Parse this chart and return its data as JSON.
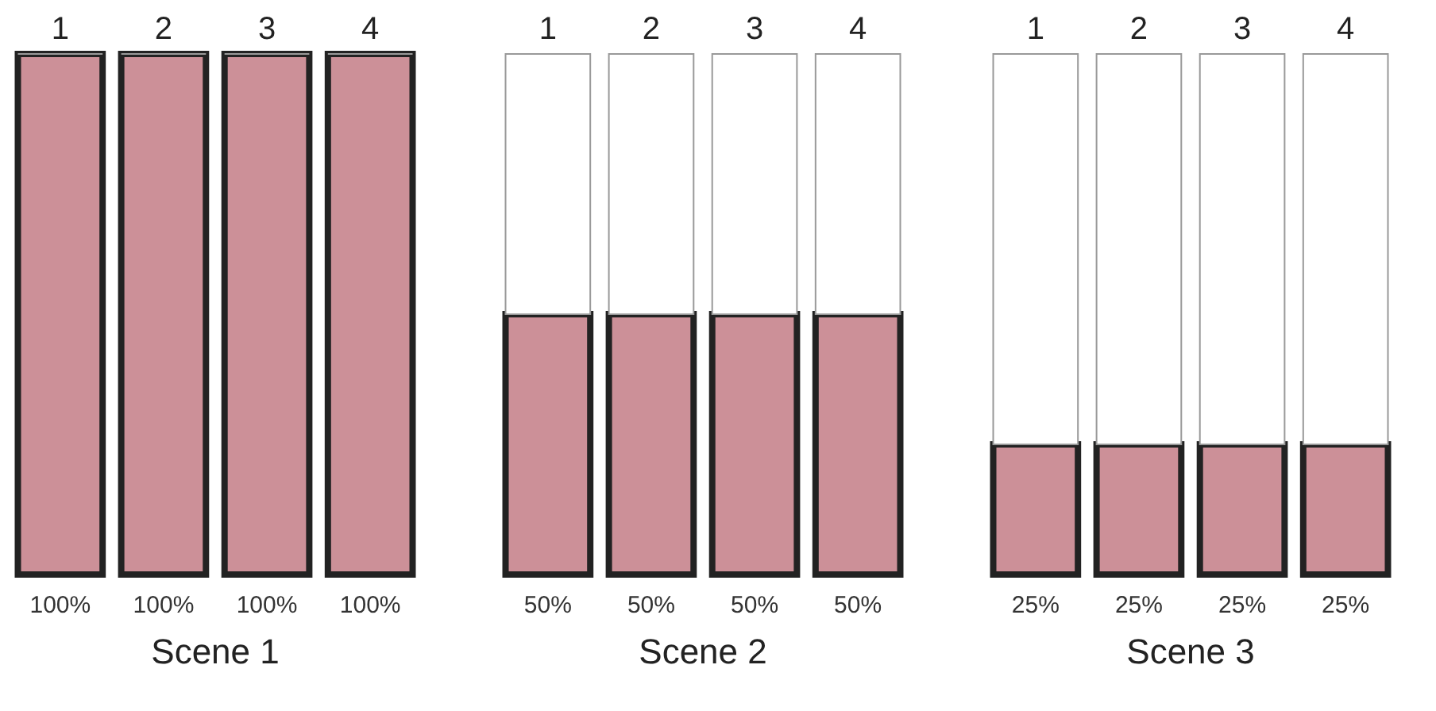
{
  "chart_data": [
    {
      "type": "bar",
      "title": "Scene 1",
      "categories": [
        "1",
        "2",
        "3",
        "4"
      ],
      "stacked": true,
      "ylim": [
        0,
        100
      ],
      "tick_labels": "x",
      "series": [
        {
          "color": "#cc9098",
          "values": [
            100,
            100,
            100,
            100
          ],
          "value_labels": [
            "100%",
            "100%",
            "100%",
            "100%"
          ]
        },
        {
          "color": "#ffffff",
          "values": [
            0,
            0,
            0,
            0
          ]
        }
      ]
    },
    {
      "type": "bar",
      "title": "Scene 2",
      "categories": [
        "1",
        "2",
        "3",
        "4"
      ],
      "stacked": true,
      "ylim": [
        0,
        100
      ],
      "tick_labels": "x",
      "series": [
        {
          "color": "#cc9098",
          "values": [
            50,
            50,
            50,
            50
          ],
          "value_labels": [
            "50%",
            "50%",
            "50%",
            "50%"
          ]
        },
        {
          "color": "#ffffff",
          "values": [
            50,
            50,
            50,
            50
          ]
        }
      ]
    },
    {
      "type": "bar",
      "title": "Scene 3",
      "categories": [
        "1",
        "2",
        "3",
        "4"
      ],
      "stacked": true,
      "ylim": [
        0,
        100
      ],
      "tick_labels": "x",
      "series": [
        {
          "color": "#cc9098",
          "values": [
            25,
            25,
            25,
            25
          ],
          "value_labels": [
            "25%",
            "25%",
            "25%",
            "25%"
          ]
        },
        {
          "color": "#ffffff",
          "values": [
            75,
            75,
            75,
            75
          ]
        }
      ]
    }
  ]
}
